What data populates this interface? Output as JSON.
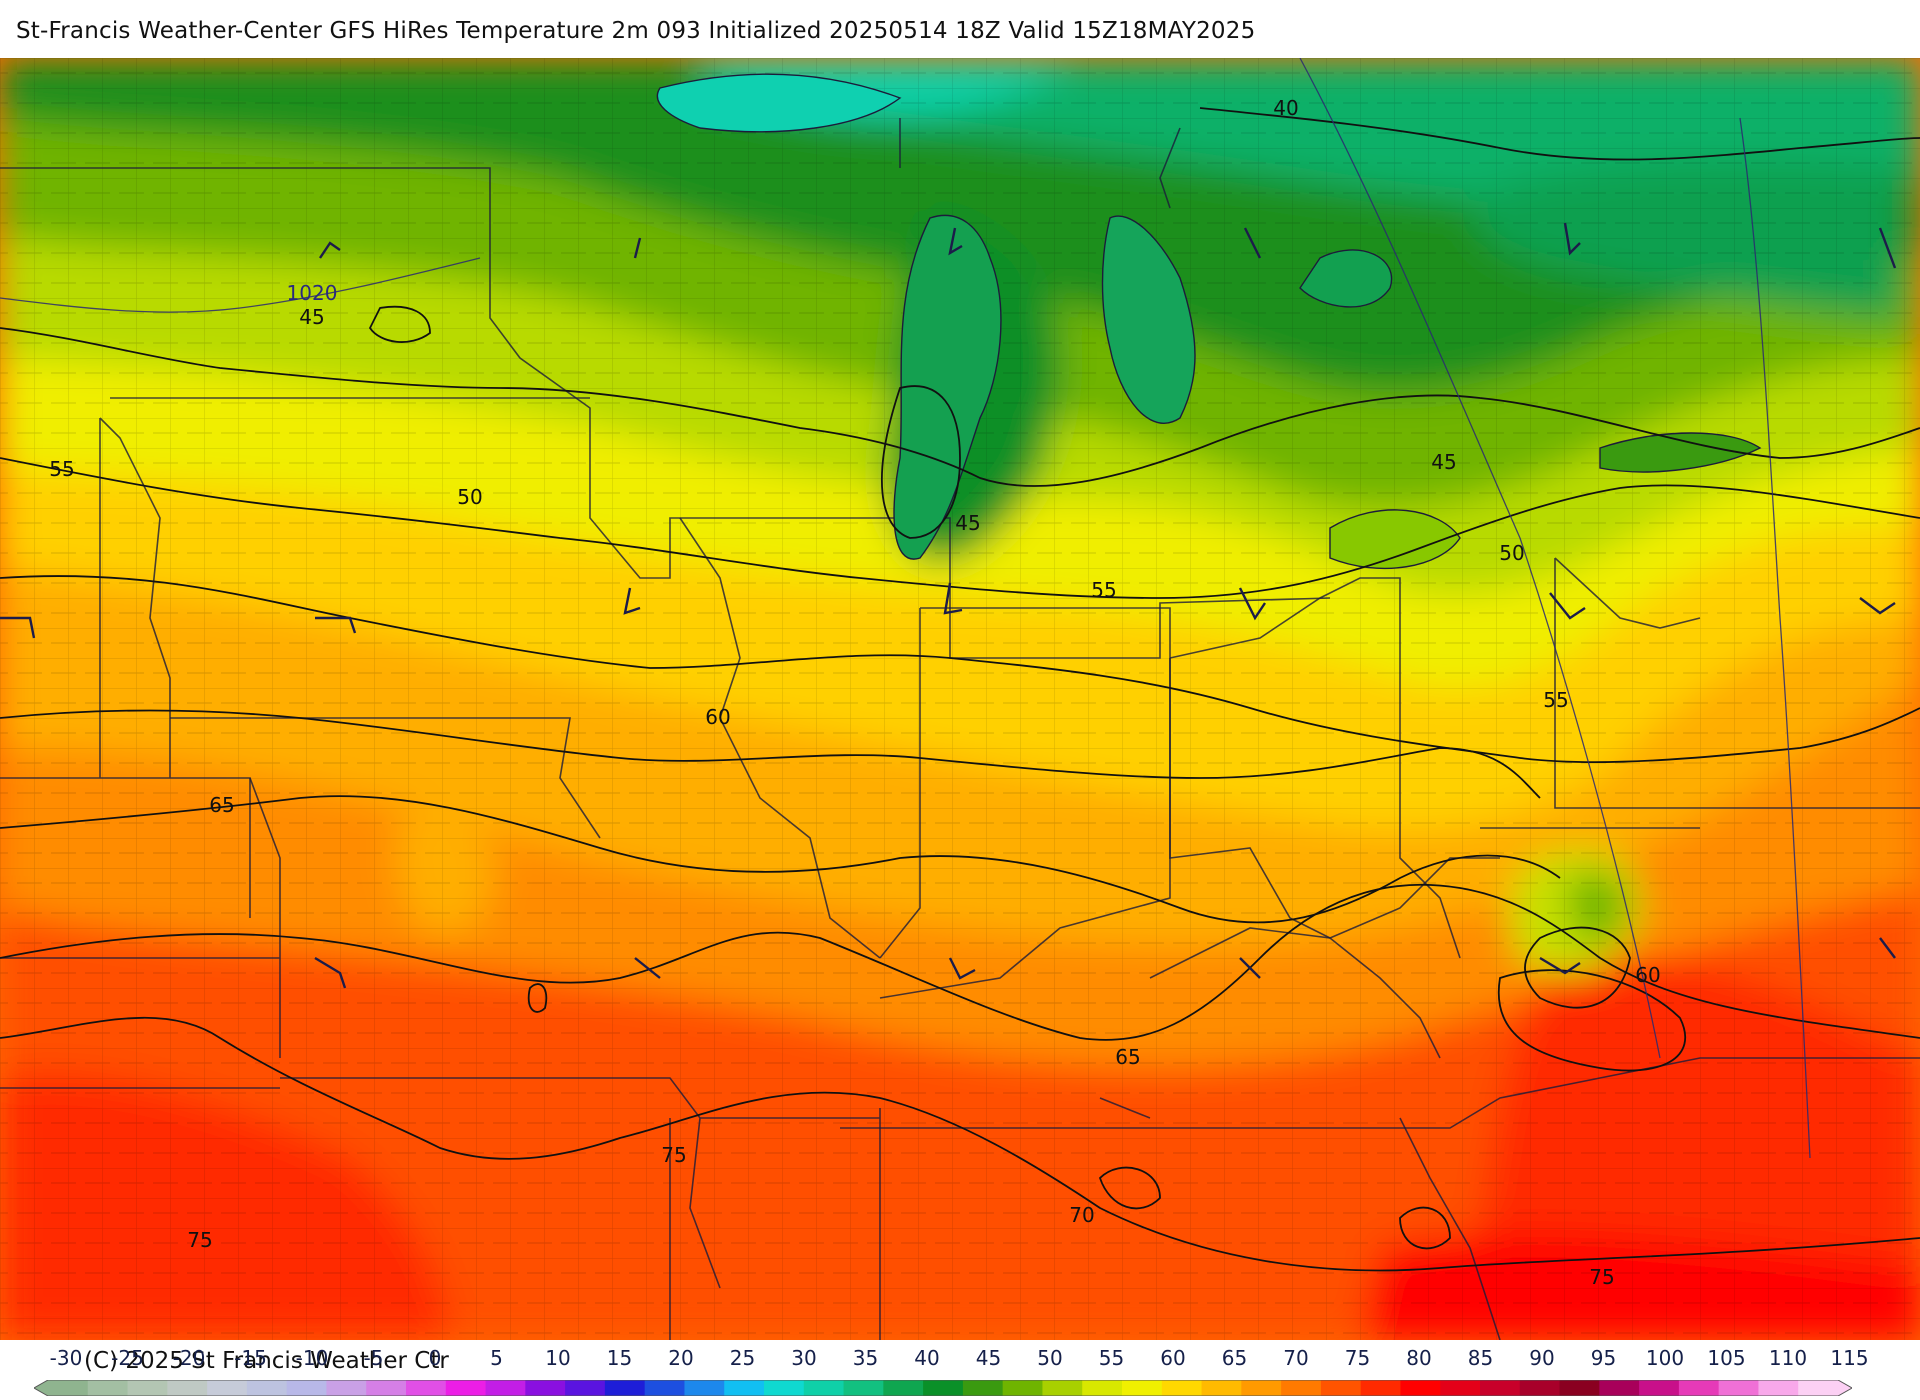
{
  "title": "St-Francis Weather-Center GFS HiRes Temperature 2m  093 Initialized 20250514 18Z Valid 15Z18MAY2025",
  "copyright": "(C) 2025 St Francis Weather Ctr",
  "map": {
    "contour_labels": [
      {
        "id": "c40a",
        "text": "40"
      },
      {
        "id": "c45a",
        "text": "45"
      },
      {
        "id": "c45b",
        "text": "45"
      },
      {
        "id": "c45c",
        "text": "45"
      },
      {
        "id": "c50a",
        "text": "50"
      },
      {
        "id": "c50b",
        "text": "50"
      },
      {
        "id": "c55a",
        "text": "55"
      },
      {
        "id": "c55b",
        "text": "55"
      },
      {
        "id": "c55c",
        "text": "55"
      },
      {
        "id": "c60a",
        "text": "60"
      },
      {
        "id": "c60b",
        "text": "60"
      },
      {
        "id": "c65a",
        "text": "65"
      },
      {
        "id": "c65b",
        "text": "65"
      },
      {
        "id": "c70a",
        "text": "70"
      },
      {
        "id": "c75a",
        "text": "75"
      },
      {
        "id": "c75b",
        "text": "75"
      },
      {
        "id": "c75c",
        "text": "75"
      }
    ],
    "pressure_label": "1020"
  },
  "legend": {
    "ticks": [
      "-30",
      "-25",
      "-20",
      "-15",
      "-10",
      "-5",
      "0",
      "5",
      "10",
      "15",
      "20",
      "25",
      "30",
      "35",
      "40",
      "45",
      "50",
      "55",
      "60",
      "65",
      "70",
      "75",
      "80",
      "85",
      "90",
      "95",
      "100",
      "105",
      "110",
      "115"
    ],
    "colors": [
      "#8fb48f",
      "#a3bfa3",
      "#b3c6b3",
      "#bfc9c4",
      "#c6cbd9",
      "#bdc3e0",
      "#b8b8e8",
      "#c9a0e6",
      "#d57fe6",
      "#e14fe6",
      "#ec1ee6",
      "#c31ee6",
      "#8a10e0",
      "#5a14e0",
      "#1e1ed8",
      "#1d4fe0",
      "#1d88ec",
      "#11bff2",
      "#0fd9d0",
      "#0fd0a8",
      "#12c080",
      "#0fa650",
      "#0a9028",
      "#3a9a10",
      "#6fb400",
      "#a8d000",
      "#d8e800",
      "#f0f000",
      "#ffd800",
      "#ffba00",
      "#ff9a00",
      "#ff7a00",
      "#ff5400",
      "#ff2a00",
      "#ff0000",
      "#e40018",
      "#c8002a",
      "#a8002a",
      "#8a0020",
      "#a8005a",
      "#c8108a",
      "#e63ab8",
      "#f070d6",
      "#f8a8ea",
      "#fcd0f4"
    ]
  }
}
